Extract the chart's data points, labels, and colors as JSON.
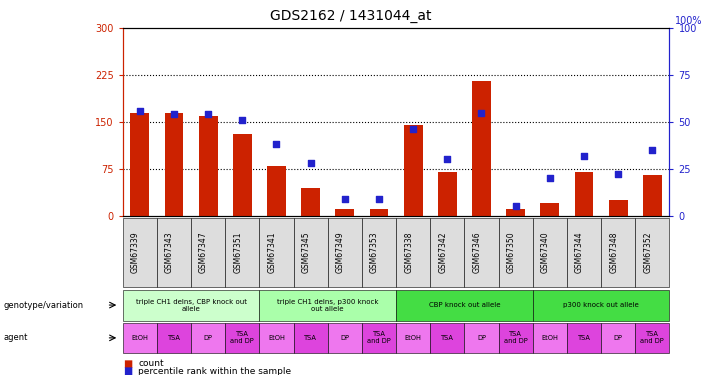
{
  "title": "GDS2162 / 1431044_at",
  "samples": [
    "GSM67339",
    "GSM67343",
    "GSM67347",
    "GSM67351",
    "GSM67341",
    "GSM67345",
    "GSM67349",
    "GSM67353",
    "GSM67338",
    "GSM67342",
    "GSM67346",
    "GSM67350",
    "GSM67340",
    "GSM67344",
    "GSM67348",
    "GSM67352"
  ],
  "counts": [
    165,
    165,
    160,
    130,
    80,
    45,
    10,
    10,
    145,
    70,
    215,
    10,
    20,
    70,
    25,
    65
  ],
  "percentiles": [
    56,
    54,
    54,
    51,
    38,
    28,
    9,
    9,
    46,
    30,
    55,
    5,
    20,
    32,
    22,
    35
  ],
  "genotype_groups": [
    {
      "label": "triple CH1 delns, CBP knock out\nallele",
      "start": 0,
      "end": 4,
      "color": "#ccffcc"
    },
    {
      "label": "triple CH1 delns, p300 knock\nout allele",
      "start": 4,
      "end": 8,
      "color": "#aaffaa"
    },
    {
      "label": "CBP knock out allele",
      "start": 8,
      "end": 12,
      "color": "#44dd44"
    },
    {
      "label": "p300 knock out allele",
      "start": 12,
      "end": 16,
      "color": "#44dd44"
    }
  ],
  "agents": [
    "EtOH",
    "TSA",
    "DP",
    "TSA\nand DP",
    "EtOH",
    "TSA",
    "DP",
    "TSA\nand DP",
    "EtOH",
    "TSA",
    "DP",
    "TSA\nand DP",
    "EtOH",
    "TSA",
    "DP",
    "TSA\nand DP"
  ],
  "agent_colors": [
    "#ee77ee",
    "#dd44dd",
    "#ee77ee",
    "#dd44dd",
    "#ee77ee",
    "#dd44dd",
    "#ee77ee",
    "#dd44dd",
    "#ee77ee",
    "#dd44dd",
    "#ee77ee",
    "#dd44dd",
    "#ee77ee",
    "#dd44dd",
    "#ee77ee",
    "#dd44dd"
  ],
  "bar_color": "#cc2200",
  "dot_color": "#2222cc",
  "ylim_left": [
    0,
    300
  ],
  "ylim_right": [
    0,
    100
  ],
  "yticks_left": [
    0,
    75,
    150,
    225,
    300
  ],
  "yticks_right": [
    0,
    25,
    50,
    75,
    100
  ],
  "hlines": [
    75,
    150,
    225
  ],
  "right_label": "100%"
}
